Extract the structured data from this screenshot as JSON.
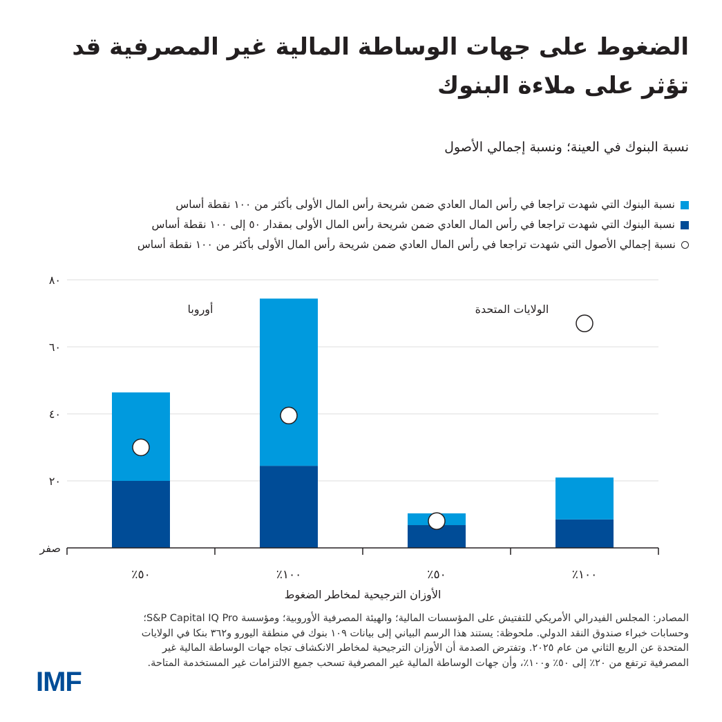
{
  "title": "الضغوط على جهات الوساطة المالية غير المصرفية قد تؤثر على ملاءة البنوك",
  "subtitle": "نسبة البنوك في العينة؛ ونسبة إجمالي الأصول",
  "legend": [
    {
      "label": "نسبة البنوك التي شهدت تراجعا في رأس المال العادي ضمن شريحة رأس المال الأولى بأكثر من ١٠٠ نقطة أساس",
      "color": "#009ade",
      "marker": "square"
    },
    {
      "label": "نسبة البنوك التي شهدت تراجعا في رأس المال العادي ضمن شريحة رأس المال الأولى بمقدار ٥٠ إلى ١٠٠ نقطة أساس",
      "color": "#004c97",
      "marker": "square"
    },
    {
      "label": "نسبة إجمالي الأصول التي شهدت تراجعا في رأس المال العادي ضمن شريحة رأس المال الأولى بأكثر من ١٠٠ نقطة أساس",
      "color": "#ffffff",
      "marker": "circle"
    }
  ],
  "chart_data": {
    "type": "bar",
    "stacked": true,
    "categories": [
      "٪٥٠",
      "٪١٠٠",
      "٪٥٠",
      "٪١٠٠"
    ],
    "groups": [
      {
        "label": "أوروبا",
        "categories": [
          0,
          1
        ]
      },
      {
        "label": "الولايات المتحدة",
        "categories": [
          2,
          3
        ]
      }
    ],
    "series": [
      {
        "name": "نسبة البنوك التي شهدت تراجعا في رأس المال العادي ضمن شريحة رأس المال الأولى بمقدار ٥٠ إلى ١٠٠ نقطة أساس",
        "type": "bar",
        "color": "#004c97",
        "values": [
          20,
          24.5,
          6.8,
          8.5
        ]
      },
      {
        "name": "نسبة البنوك التي شهدت تراجعا في رأس المال العادي ضمن شريحة رأس المال الأولى بأكثر من ١٠٠ نقطة أساس",
        "type": "bar",
        "color": "#009ade",
        "values": [
          26.4,
          49.9,
          3.5,
          12.5
        ]
      },
      {
        "name": "نسبة إجمالي الأصول التي شهدت تراجعا في رأس المال العادي ضمن شريحة رأس المال الأولى بأكثر من ١٠٠ نقطة أساس",
        "type": "scatter",
        "color": "#ffffff",
        "values": [
          30,
          39.5,
          8,
          67
        ]
      }
    ],
    "xlabel": "الأوزان الترجيحية لمخاطر الضغوط",
    "ylabel": "",
    "ylim": [
      0,
      80
    ],
    "yticks": [
      0,
      20,
      40,
      60,
      80
    ],
    "ytick_labels": [
      "صفر",
      "٢٠",
      "٤٠",
      "٦٠",
      "٨٠"
    ],
    "grid": true
  },
  "source": "المصادر: المجلس الفيدرالي الأمريكي للتفتيش على المؤسسات المالية؛ والهيئة المصرفية الأوروبية؛ ومؤسسة S&P Capital IQ Pro؛ وحسابات خبراء صندوق النقد الدولي. ملحوظة: يستند هذا الرسم البياني إلى بيانات ١٠٩ بنوك في منطقة اليورو و٣٦٢ بنكا في الولايات المتحدة عن الربع الثاني من عام ٢٠٢٥. وتفترض الصدمة أن الأوزان الترجيحية لمخاطر الانكشاف تجاه جهات الوساطة المالية غير المصرفية ترتفع من ٢٠٪ إلى ٥٠٪ و١٠٠٪، وأن جهات الوساطة المالية غير المصرفية تسحب جميع الالتزامات غير المستخدمة المتاحة.",
  "logo": "IMF"
}
